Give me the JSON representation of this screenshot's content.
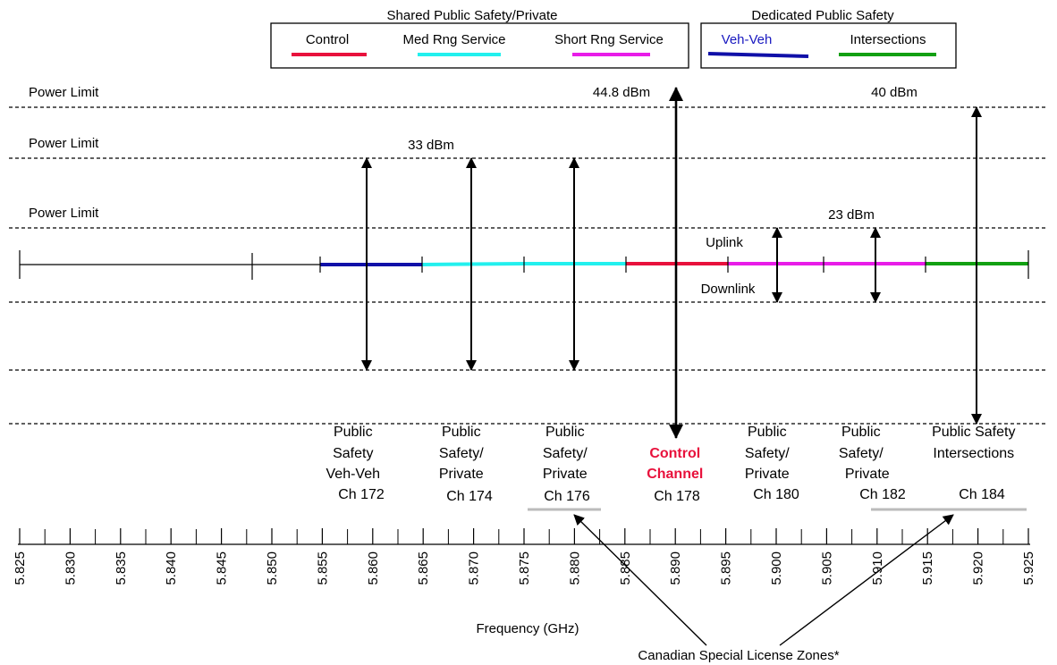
{
  "legend": {
    "shared_title": "Shared Public Safety/Private",
    "dedicated_title": "Dedicated Public Safety",
    "shared_items": [
      {
        "label": "Control",
        "color": "#e8113c"
      },
      {
        "label": "Med Rng Service",
        "color": "#22f0ee"
      },
      {
        "label": "Short Rng Service",
        "color": "#e81ce8"
      }
    ],
    "dedicated_items": [
      {
        "label": "Veh-Veh",
        "color": "#1010a8",
        "label_color": "#1818c0"
      },
      {
        "label": "Intersections",
        "color": "#12a012"
      }
    ]
  },
  "power_limits": [
    {
      "label": "Power Limit",
      "value": "44.8 dBm"
    },
    {
      "label": "Power Limit",
      "value": "40 dBm"
    },
    {
      "label": "Power Limit",
      "value": "33 dBm"
    },
    {
      "label": "Power Limit",
      "value": "23 dBm"
    }
  ],
  "link_labels": {
    "uplink": "Uplink",
    "downlink": "Downlink"
  },
  "channels": [
    {
      "lines": [
        "Public",
        "Safety",
        "Veh-Veh",
        "Ch 172"
      ],
      "highlight": false
    },
    {
      "lines": [
        "Public",
        "Safety/",
        "Private",
        "Ch 174"
      ],
      "highlight": false
    },
    {
      "lines": [
        "Public",
        "Safety/",
        "Private",
        "Ch 176"
      ],
      "highlight": false
    },
    {
      "lines": [
        "Control",
        "Channel",
        "Ch 178"
      ],
      "highlight": true
    },
    {
      "lines": [
        "Public",
        "Safety/",
        "Private",
        "Ch 180"
      ],
      "highlight": false
    },
    {
      "lines": [
        "Public",
        "Safety/",
        "Private",
        "Ch 182"
      ],
      "highlight": false
    },
    {
      "lines": [
        "Public Safety",
        "Intersections",
        "Ch 184"
      ],
      "highlight": false
    }
  ],
  "highlight_color": "#e8113c",
  "frequency_axis": {
    "label": "Frequency (GHz)",
    "ticks": [
      "5.825",
      "5.830",
      "5.835",
      "5.840",
      "5.845",
      "5.850",
      "5.855",
      "5.860",
      "5.865",
      "5.870",
      "5.875",
      "5.880",
      "5.885",
      "5.890",
      "5.895",
      "5.900",
      "5.905",
      "5.910",
      "5.915",
      "5.920",
      "5.925"
    ]
  },
  "special_zones": {
    "label": "Canadian Special License Zones*",
    "color": "#bbbbbb"
  }
}
